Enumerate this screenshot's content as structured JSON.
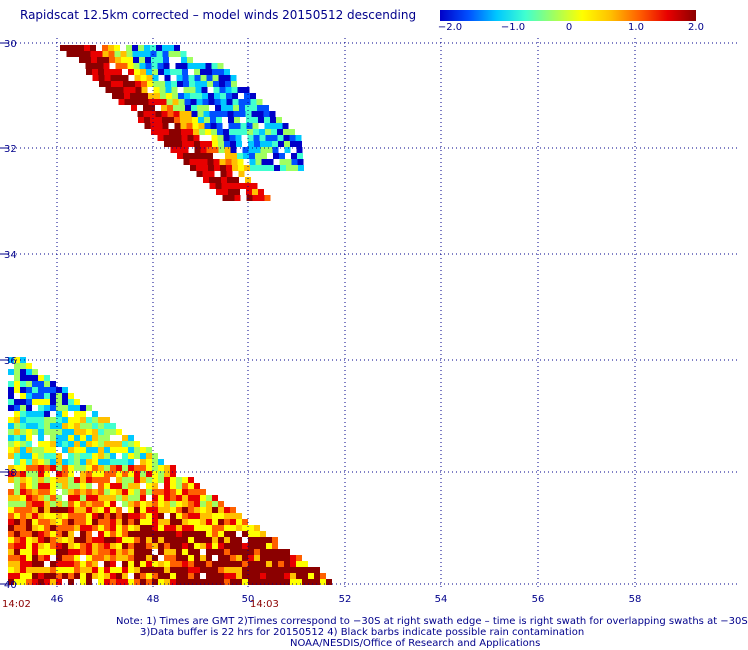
{
  "title": "Rapidscat 12.5km corrected – model winds 20150512 descending",
  "colorbar": {
    "ticks": [
      "−2.0",
      "−1.0",
      "0",
      "1.0",
      "2.0"
    ],
    "range": [
      -2.0,
      2.0
    ],
    "colors": [
      "#0000c8",
      "#0050ff",
      "#00c8ff",
      "#40ffd0",
      "#a0ff60",
      "#ffff00",
      "#ffc000",
      "#ff6000",
      "#e80000",
      "#8b0000"
    ]
  },
  "map": {
    "lat_ticks": [
      "30",
      "32",
      "34",
      "36",
      "38",
      "40"
    ],
    "lon_ticks": [
      "46",
      "48",
      "50",
      "52",
      "54",
      "56",
      "58"
    ],
    "lat_range": [
      -30,
      -40
    ],
    "lon_range": [
      45,
      59.5
    ],
    "grid": true,
    "grid_color": "#00008b",
    "swaths": [
      {
        "name": "upper",
        "time_left": "",
        "time_right": ""
      },
      {
        "name": "lower",
        "time_left": "14:02",
        "time_right": "14:03"
      }
    ]
  },
  "times": {
    "left": "14:02",
    "right": "14:03"
  },
  "notes": {
    "line1": "Note: 1) Times are GMT 2)Times correspond to −30S at right swath edge – time is right swath for overlapping swaths at −30S",
    "line2": "3)Data buffer is 22 hrs for 20150512 4) Black barbs indicate possible rain contamination",
    "line3": "NOAA/NESDIS/Office of Research and Applications"
  }
}
